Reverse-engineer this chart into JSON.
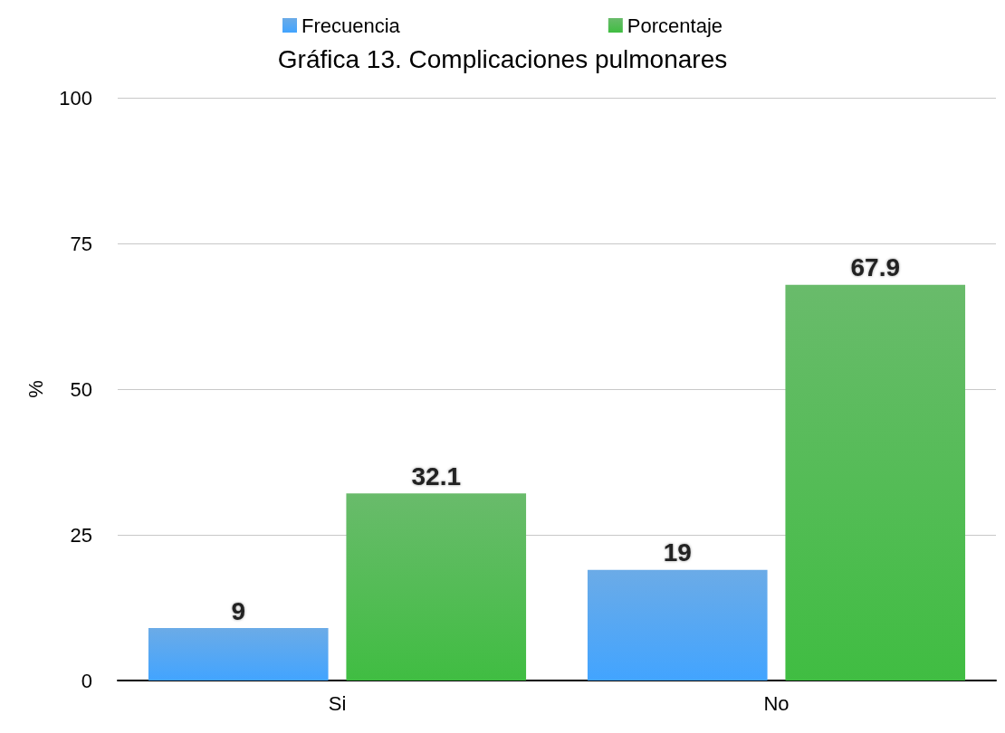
{
  "chart_data": {
    "type": "bar",
    "title": "Gráfica 13. Complicaciones pulmonares",
    "ylabel": "%",
    "categories": [
      "Si",
      "No"
    ],
    "series": [
      {
        "name": "Frecuencia",
        "color": "#3a8fe0",
        "values": [
          9,
          19
        ]
      },
      {
        "name": "Porcentaje",
        "color": "#38a53a",
        "values": [
          32.1,
          67.9
        ]
      }
    ],
    "ylim": [
      0,
      100
    ],
    "yticks": [
      0,
      25,
      50,
      75,
      100
    ],
    "grid": "y",
    "legend": "top",
    "data_labels": true
  }
}
